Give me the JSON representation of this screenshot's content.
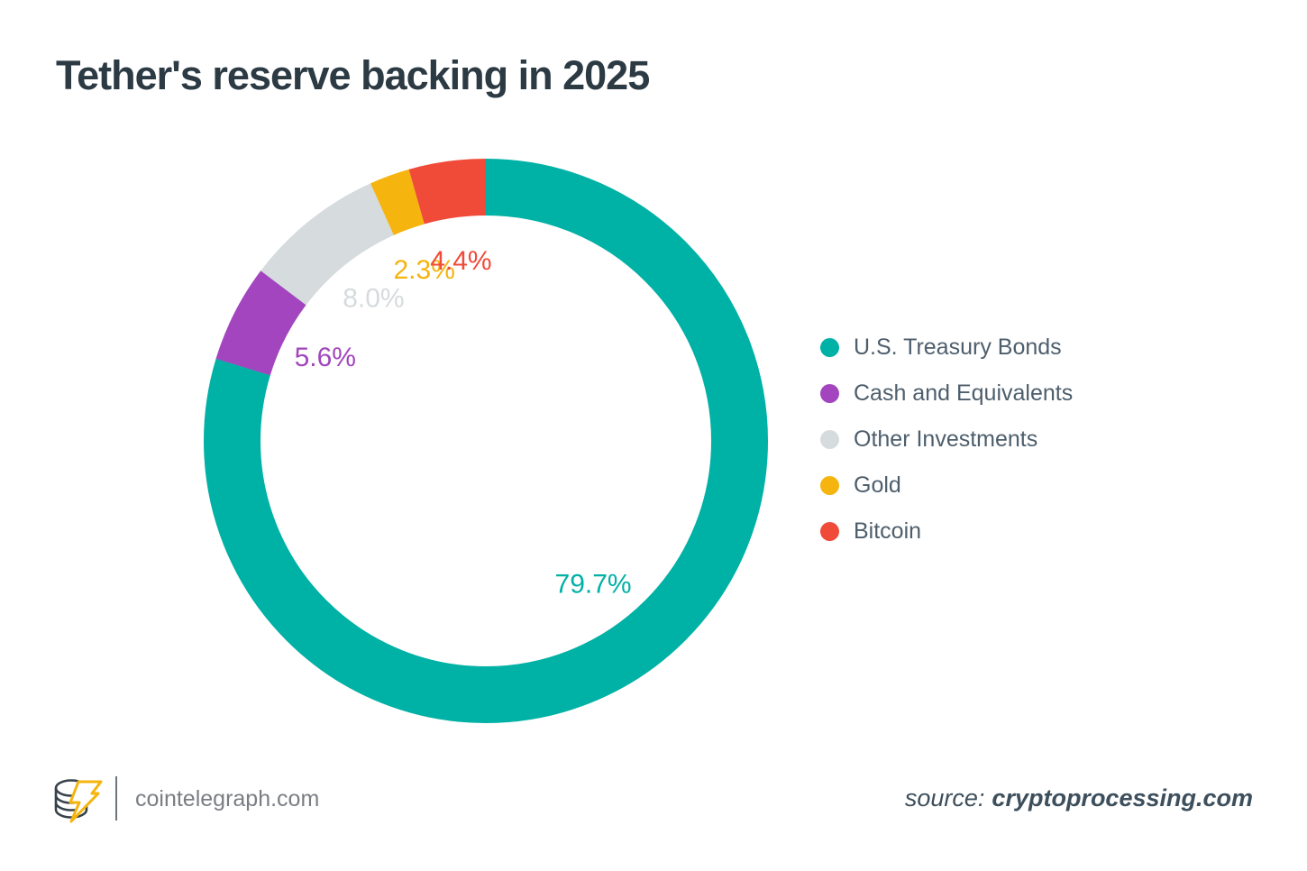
{
  "title": "Tether's reserve backing in 2025",
  "chart_data": {
    "type": "pie",
    "subtype": "donut",
    "title": "Tether's reserve backing in 2025",
    "units": "percent",
    "start_angle_deg": 0,
    "direction": "clockwise",
    "donut_hole": true,
    "legend_position": "right",
    "segments": [
      {
        "label": "U.S. Treasury Bonds",
        "value": 79.7,
        "value_label": "79.7%",
        "color": "#00B1A5"
      },
      {
        "label": "Cash and Equivalents",
        "value": 5.6,
        "value_label": "5.6%",
        "color": "#A245BE"
      },
      {
        "label": "Other Investments",
        "value": 8.0,
        "value_label": "8.0%",
        "color": "#D6DBDE"
      },
      {
        "label": "Gold",
        "value": 2.3,
        "value_label": "2.3%",
        "color": "#F5B40E"
      },
      {
        "label": "Bitcoin",
        "value": 4.4,
        "value_label": "4.4%",
        "color": "#F04A38"
      }
    ]
  },
  "footer": {
    "logo_icon": "cointelegraph-coin-bolt-logo",
    "site": "cointelegraph.com",
    "source_prefix": "source:",
    "source": "cryptoprocessing.com"
  },
  "colors": {
    "title_text": "#2C3A44",
    "legend_text": "#4D5E6C",
    "footer_text": "#7A7E83",
    "source_text": "#3D4F5C",
    "background": "#FFFFFF"
  }
}
